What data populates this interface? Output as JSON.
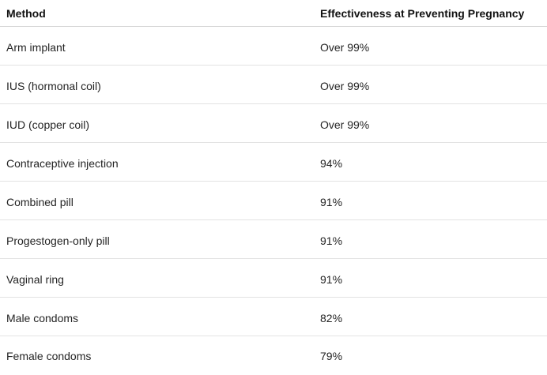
{
  "table": {
    "headers": [
      "Method",
      "Effectiveness at Preventing Pregnancy"
    ],
    "rows": [
      [
        "Arm implant",
        "Over 99%"
      ],
      [
        "IUS (hormonal coil)",
        "Over 99%"
      ],
      [
        "IUD (copper coil)",
        "Over 99%"
      ],
      [
        "Contraceptive injection",
        "94%"
      ],
      [
        "Combined pill",
        "91%"
      ],
      [
        "Progestogen-only pill",
        "91%"
      ],
      [
        "Vaginal ring",
        "91%"
      ],
      [
        "Male condoms",
        "82%"
      ],
      [
        "Female condoms",
        "79%"
      ]
    ]
  }
}
